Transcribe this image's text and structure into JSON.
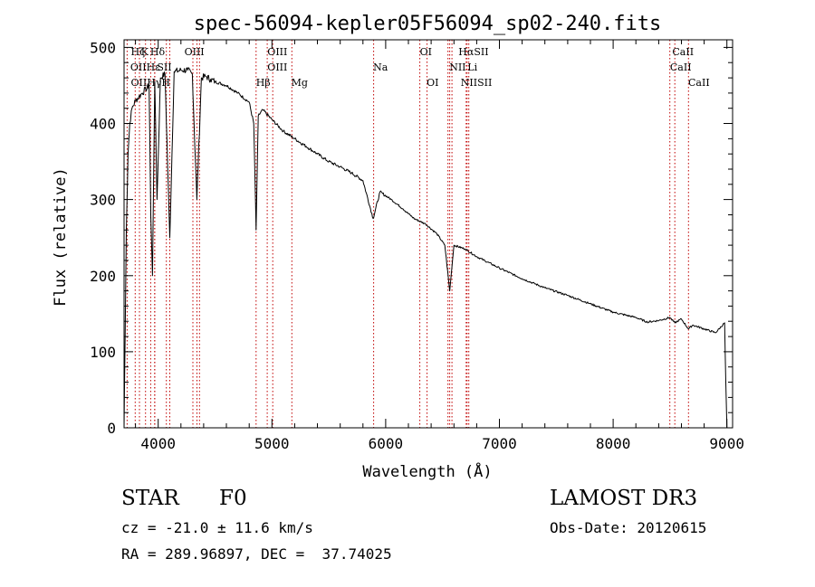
{
  "chart_data": {
    "type": "line",
    "title": "spec-56094-kepler05F56094_sp02-240.fits",
    "xlabel": "Wavelength (Å)",
    "ylabel": "Flux (relative)",
    "xlim": [
      3700,
      9050
    ],
    "ylim": [
      0,
      510
    ],
    "x_ticks": [
      4000,
      5000,
      6000,
      7000,
      8000,
      9000
    ],
    "y_ticks": [
      0,
      100,
      200,
      300,
      400,
      500
    ],
    "grid": false,
    "series": [
      {
        "name": "spectrum",
        "x": [
          3700,
          3710,
          3720,
          3735,
          3750,
          3770,
          3800,
          3830,
          3860,
          3890,
          3920,
          3935,
          3950,
          3970,
          3990,
          4020,
          4060,
          4102,
          4140,
          4200,
          4260,
          4300,
          4340,
          4380,
          4420,
          4460,
          4500,
          4600,
          4700,
          4800,
          4840,
          4861,
          4880,
          4920,
          5000,
          5100,
          5200,
          5300,
          5400,
          5500,
          5600,
          5700,
          5800,
          5890,
          5950,
          6050,
          6150,
          6250,
          6350,
          6450,
          6520,
          6563,
          6600,
          6700,
          6800,
          7000,
          7200,
          7400,
          7600,
          7800,
          8000,
          8200,
          8300,
          8400,
          8498,
          8542,
          8600,
          8662,
          8700,
          8800,
          8900,
          8980,
          8985,
          8990,
          9000
        ],
        "values": [
          0,
          130,
          260,
          360,
          400,
          420,
          430,
          435,
          440,
          445,
          450,
          280,
          200,
          455,
          300,
          460,
          465,
          250,
          468,
          470,
          470,
          465,
          300,
          460,
          462,
          458,
          455,
          450,
          440,
          428,
          400,
          260,
          410,
          418,
          405,
          390,
          380,
          370,
          360,
          350,
          343,
          335,
          325,
          275,
          310,
          300,
          288,
          275,
          268,
          255,
          240,
          180,
          240,
          235,
          225,
          210,
          196,
          184,
          174,
          163,
          152,
          145,
          139,
          141,
          145,
          138,
          143,
          130,
          135,
          130,
          125,
          138,
          100,
          60,
          0
        ]
      }
    ],
    "lines": [
      {
        "name": "OII",
        "x": 3727
      },
      {
        "name": "Hθ",
        "x": 3798
      },
      {
        "name": "Hη",
        "x": 3835
      },
      {
        "name": "Hζ",
        "x": 3889
      },
      {
        "name": "K",
        "x": 3934
      },
      {
        "name": "H",
        "x": 3969
      },
      {
        "name": "Hε",
        "x": 3970
      },
      {
        "name": "SII",
        "x": 4072
      },
      {
        "name": "Hδ",
        "x": 4102
      },
      {
        "name": "G",
        "x": 4305
      },
      {
        "name": "Hγ",
        "x": 4341
      },
      {
        "name": "OIII",
        "x": 4363
      },
      {
        "name": "Hβ",
        "x": 4861
      },
      {
        "name": "OIII",
        "x": 4959
      },
      {
        "name": "OIII",
        "x": 5007
      },
      {
        "name": "Mg",
        "x": 5175
      },
      {
        "name": "Na",
        "x": 5894
      },
      {
        "name": "OI",
        "x": 6300
      },
      {
        "name": "OI",
        "x": 6364
      },
      {
        "name": "NII",
        "x": 6548
      },
      {
        "name": "Hα",
        "x": 6563
      },
      {
        "name": "NII",
        "x": 6583
      },
      {
        "name": "Li",
        "x": 6708
      },
      {
        "name": "SII",
        "x": 6716
      },
      {
        "name": "SII",
        "x": 6731
      },
      {
        "name": "CaII",
        "x": 8498
      },
      {
        "name": "CaII",
        "x": 8542
      },
      {
        "name": "CaII",
        "x": 8662
      }
    ],
    "line_labels": [
      {
        "text": "Hζ",
        "x": 3760,
        "row": 0
      },
      {
        "text": "K",
        "x": 3850,
        "row": 0
      },
      {
        "text": "Hδ",
        "x": 3930,
        "row": 0
      },
      {
        "text": "OIII",
        "x": 4230,
        "row": 0
      },
      {
        "text": "OIII",
        "x": 4960,
        "row": 0
      },
      {
        "text": "OI",
        "x": 6300,
        "row": 0
      },
      {
        "text": "HαSII",
        "x": 6640,
        "row": 0
      },
      {
        "text": "CaII",
        "x": 8520,
        "row": 0
      },
      {
        "text": "OIIHε",
        "x": 3755,
        "row": 1
      },
      {
        "text": "SII",
        "x": 3990,
        "row": 1
      },
      {
        "text": "OIII",
        "x": 4960,
        "row": 1
      },
      {
        "text": "NII",
        "x": 6560,
        "row": 1
      },
      {
        "text": "Li",
        "x": 6720,
        "row": 1
      },
      {
        "text": "CaII",
        "x": 8500,
        "row": 1
      },
      {
        "text": "OIIHγH",
        "x": 3760,
        "row": 2
      },
      {
        "text": "Hβ",
        "x": 4860,
        "row": 2
      },
      {
        "text": "Mg",
        "x": 5170,
        "row": 2
      },
      {
        "text": "Na",
        "x": 5890,
        "row": 1
      },
      {
        "text": "OI",
        "x": 6360,
        "row": 2
      },
      {
        "text": "NIISII",
        "x": 6660,
        "row": 2
      },
      {
        "text": "CaII",
        "x": 8660,
        "row": 2
      }
    ]
  },
  "info": {
    "object_class": "STAR",
    "subclass": "F0",
    "survey": "LAMOST DR3",
    "cz": "cz = -21.0 ± 11.6 km/s",
    "obs_date": "Obs-Date: 20120615",
    "radec": "RA = 289.96897, DEC =  37.74025"
  },
  "colors": {
    "spectrum": "#000000",
    "line_markers": "#c00000",
    "axes": "#000000"
  }
}
